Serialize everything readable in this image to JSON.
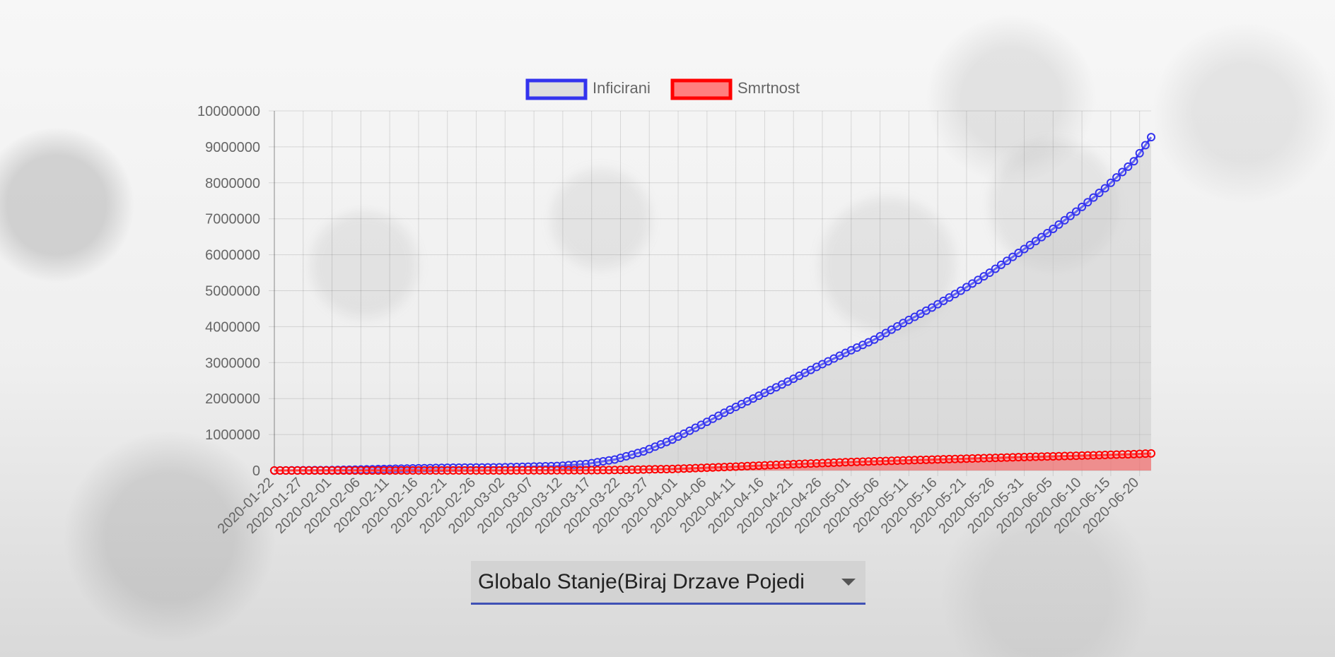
{
  "chart_data": {
    "type": "line",
    "title": "",
    "xlabel": "",
    "ylabel": "",
    "ylim": [
      0,
      10000000
    ],
    "y_ticks": [
      0,
      1000000,
      2000000,
      3000000,
      4000000,
      5000000,
      6000000,
      7000000,
      8000000,
      9000000,
      10000000
    ],
    "x_tick_labels": [
      "2020-01-22",
      "2020-01-27",
      "2020-02-01",
      "2020-02-06",
      "2020-02-11",
      "2020-02-16",
      "2020-02-21",
      "2020-02-26",
      "2020-03-02",
      "2020-03-07",
      "2020-03-12",
      "2020-03-17",
      "2020-03-22",
      "2020-03-27",
      "2020-04-01",
      "2020-04-06",
      "2020-04-11",
      "2020-04-16",
      "2020-04-21",
      "2020-04-26",
      "2020-05-01",
      "2020-05-06",
      "2020-05-11",
      "2020-05-16",
      "2020-05-21",
      "2020-05-26",
      "2020-05-31",
      "2020-06-05",
      "2020-06-10",
      "2020-06-15",
      "2020-06-20"
    ],
    "x_start": "2020-01-22",
    "x_end": "2020-06-22",
    "grid": true,
    "legend_position": "top",
    "series": [
      {
        "name": "Inficirani",
        "color": "#3333ee",
        "fill": "rgba(200,200,200,0.45)",
        "keypoints": [
          [
            "2020-01-22",
            555
          ],
          [
            "2020-02-01",
            12000
          ],
          [
            "2020-02-11",
            45000
          ],
          [
            "2020-02-21",
            77000
          ],
          [
            "2020-03-01",
            88000
          ],
          [
            "2020-03-11",
            125000
          ],
          [
            "2020-03-16",
            180000
          ],
          [
            "2020-03-21",
            305000
          ],
          [
            "2020-03-26",
            530000
          ],
          [
            "2020-03-31",
            860000
          ],
          [
            "2020-04-05",
            1270000
          ],
          [
            "2020-04-10",
            1690000
          ],
          [
            "2020-04-15",
            2080000
          ],
          [
            "2020-04-20",
            2470000
          ],
          [
            "2020-04-25",
            2880000
          ],
          [
            "2020-04-30",
            3270000
          ],
          [
            "2020-05-05",
            3640000
          ],
          [
            "2020-05-10",
            4100000
          ],
          [
            "2020-05-15",
            4530000
          ],
          [
            "2020-05-20",
            5000000
          ],
          [
            "2020-05-25",
            5500000
          ],
          [
            "2020-05-30",
            6050000
          ],
          [
            "2020-06-04",
            6600000
          ],
          [
            "2020-06-09",
            7200000
          ],
          [
            "2020-06-14",
            7850000
          ],
          [
            "2020-06-19",
            8600000
          ],
          [
            "2020-06-22",
            9270000
          ]
        ]
      },
      {
        "name": "Smrtnost",
        "color": "#ff0000",
        "fill": "rgba(255,80,80,0.55)",
        "keypoints": [
          [
            "2020-01-22",
            17
          ],
          [
            "2020-02-11",
            1100
          ],
          [
            "2020-03-01",
            3000
          ],
          [
            "2020-03-16",
            7500
          ],
          [
            "2020-03-21",
            14000
          ],
          [
            "2020-03-31",
            42000
          ],
          [
            "2020-04-10",
            102000
          ],
          [
            "2020-04-20",
            170000
          ],
          [
            "2020-04-30",
            230000
          ],
          [
            "2020-05-10",
            280000
          ],
          [
            "2020-05-20",
            325000
          ],
          [
            "2020-05-30",
            370000
          ],
          [
            "2020-06-09",
            410000
          ],
          [
            "2020-06-19",
            455000
          ],
          [
            "2020-06-22",
            475000
          ]
        ]
      }
    ]
  },
  "select": {
    "label": "Globalo Stanje(Biraj Drzave Pojedi"
  }
}
